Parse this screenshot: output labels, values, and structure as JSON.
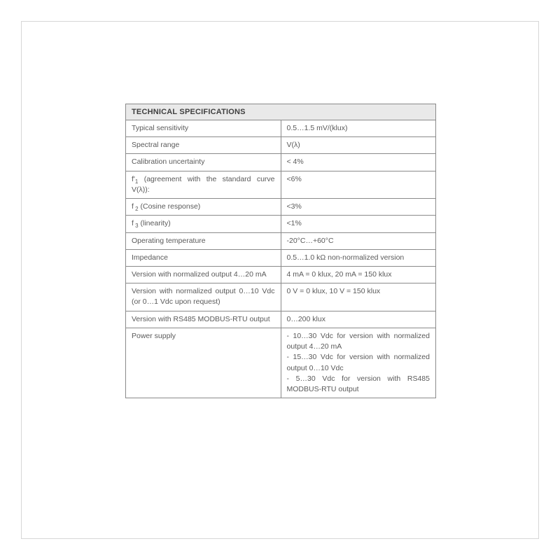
{
  "table": {
    "title": "TECHNICAL SPECIFICATIONS",
    "header_bg": "#e9e9e9",
    "border_color": "#8a8a8a",
    "text_color": "#5a5a5a",
    "title_color": "#3f3f3f",
    "font_size_pt": 10.5,
    "title_font_size_pt": 11,
    "label_col_width_pct": 47,
    "value_col_width_pct": 53,
    "rows": [
      {
        "label": "Typical sensitivity",
        "value": "0.5…1.5 mV/(klux)"
      },
      {
        "label": "Spectral range",
        "value": "V(λ)"
      },
      {
        "label": "Calibration uncertainty",
        "value": "< 4%"
      },
      {
        "label_html": "f'<span class=\"sub\">1</span> (agreement with the standard curve V(λ)):",
        "label": "f'1 (agreement with the standard curve V(λ)):",
        "value": "<6%"
      },
      {
        "label_html": "f<span class=\"sub\"> 2</span> (Cosine response)",
        "label": "f 2 (Cosine response)",
        "value": "<3%"
      },
      {
        "label_html": "f<span class=\"sub\"> 3</span> (linearity)",
        "label": "f 3 (linearity)",
        "value": "<1%"
      },
      {
        "label": "Operating temperature",
        "value": "-20°C…+60°C"
      },
      {
        "label": "Impedance",
        "value": "0.5…1.0 kΩ non-normalized version"
      },
      {
        "label": "Version with normalized output 4…20 mA",
        "value": "4 mA = 0 klux, 20 mA = 150 klux"
      },
      {
        "label": "Version with normalized output 0…10 Vdc (or 0…1 Vdc upon request)",
        "value": "0 V = 0 klux, 10 V = 150 klux"
      },
      {
        "label": "Version with RS485 MODBUS-RTU output",
        "value": "0…200 klux"
      },
      {
        "label": "Power supply",
        "value_lines": [
          "- 10…30 Vdc for version with normalized output 4…20 mA",
          "- 15…30 Vdc for version with normalized output 0…10 Vdc",
          "- 5…30 Vdc for version with RS485 MODBUS-RTU output"
        ]
      }
    ]
  },
  "frame_border_color": "#d6d6d6",
  "page_bg": "#ffffff"
}
